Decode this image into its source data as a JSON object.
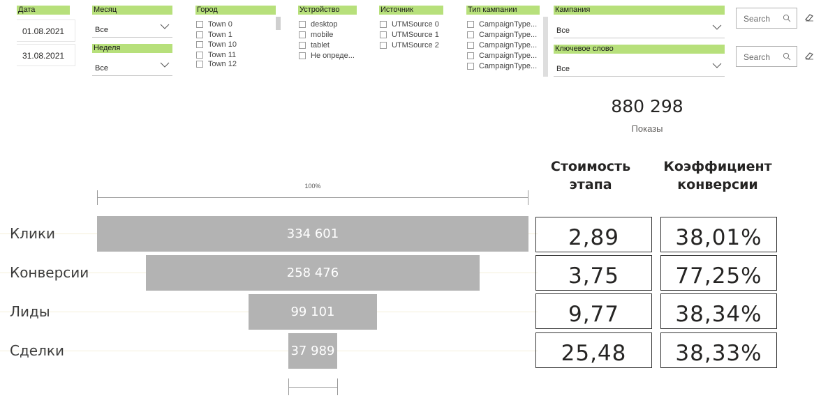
{
  "filters": {
    "date": {
      "label": "Дата",
      "start": "01.08.2021",
      "end": "31.08.2021"
    },
    "month": {
      "label": "Месяц",
      "value": "Все"
    },
    "week": {
      "label": "Неделя",
      "value": "Все"
    },
    "city": {
      "label": "Город",
      "items": [
        "Town 0",
        "Town 1",
        "Town 10",
        "Town 11",
        "Town 12"
      ]
    },
    "device": {
      "label": "Устройство",
      "items": [
        "desktop",
        "mobile",
        "tablet",
        "Не опреде..."
      ]
    },
    "source": {
      "label": "Источник",
      "items": [
        "UTMSource 0",
        "UTMSource 1",
        "UTMSource 2"
      ]
    },
    "campaign_type": {
      "label": "Тип кампании",
      "items": [
        "CampaignType...",
        "CampaignType...",
        "CampaignType...",
        "CampaignType...",
        "CampaignType..."
      ]
    },
    "campaign": {
      "label": "Кампания",
      "value": "Все"
    },
    "keyword": {
      "label": "Ключевое слово",
      "value": "Все"
    },
    "search_placeholder": "Search"
  },
  "kpi": {
    "value": "880 298",
    "label": "Показы"
  },
  "columns": {
    "cost": "Стоимость этапа",
    "conversion": "Коэффициент конверсии"
  },
  "funnel": {
    "scale_label": "100%",
    "stages": [
      {
        "name": "Клики",
        "value": 334601,
        "display": "334 601",
        "cost": "2,89",
        "conversion": "38,01%"
      },
      {
        "name": "Конверсии",
        "value": 258476,
        "display": "258 476",
        "cost": "3,75",
        "conversion": "77,25%"
      },
      {
        "name": "Лиды",
        "value": 99101,
        "display": "99 101",
        "cost": "9,77",
        "conversion": "38,34%"
      },
      {
        "name": "Сделки",
        "value": 37989,
        "display": "37 989",
        "cost": "25,48",
        "conversion": "38,33%"
      }
    ]
  }
}
